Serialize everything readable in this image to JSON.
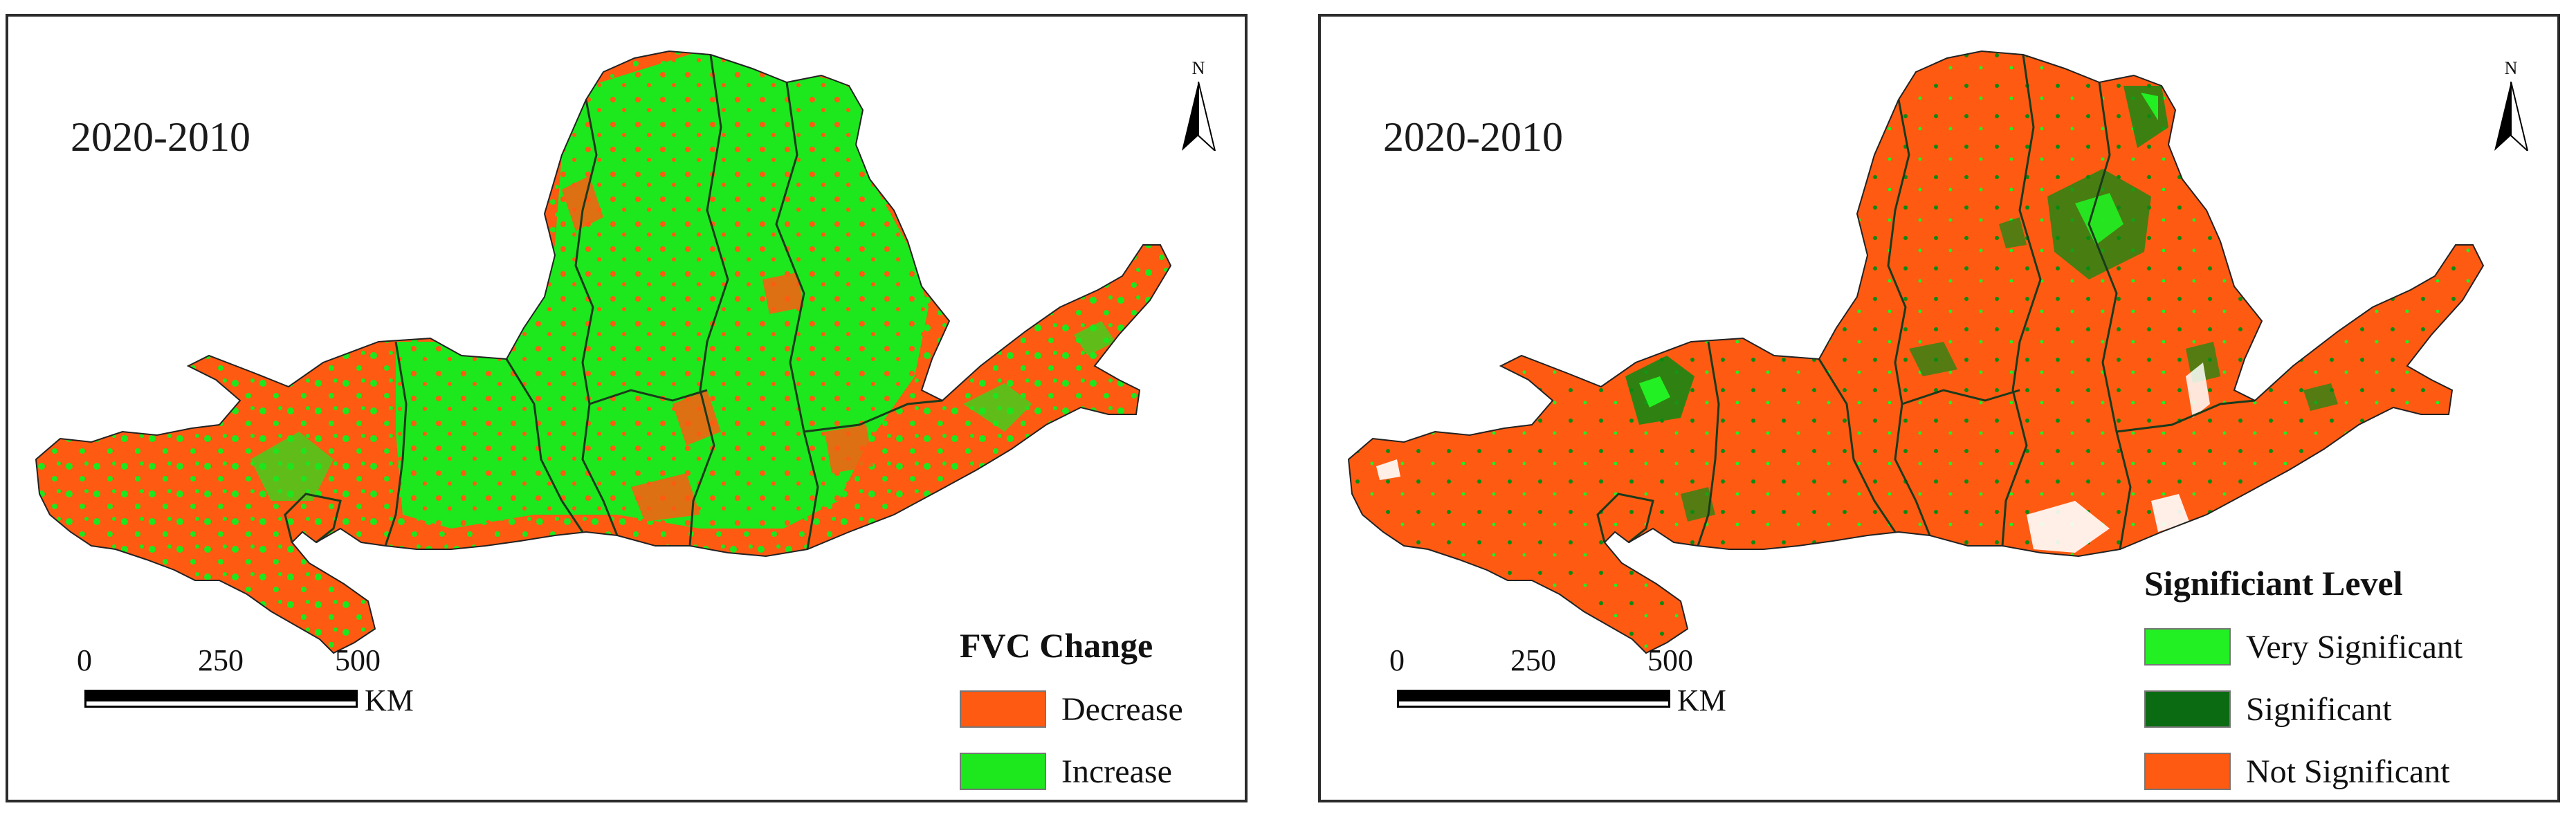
{
  "panels": [
    {
      "period_label": "2020-2010",
      "north_label": "N",
      "scale": {
        "ticks": [
          "0",
          "250",
          "500"
        ],
        "unit": "KM"
      },
      "legend": {
        "title": "FVC Change",
        "items": [
          {
            "label": "Decrease",
            "color": "#ff5a12"
          },
          {
            "label": "Increase",
            "color": "#1de71d"
          }
        ]
      }
    },
    {
      "period_label": "2020-2010",
      "north_label": "N",
      "scale": {
        "ticks": [
          "0",
          "250",
          "500"
        ],
        "unit": "KM"
      },
      "legend": {
        "title": "Significiant Level",
        "items": [
          {
            "label": "Very Significant",
            "color": "#22f022"
          },
          {
            "label": "Significant",
            "color": "#0b6b12"
          },
          {
            "label": "Not Significant",
            "color": "#ff5a12"
          }
        ]
      }
    }
  ]
}
